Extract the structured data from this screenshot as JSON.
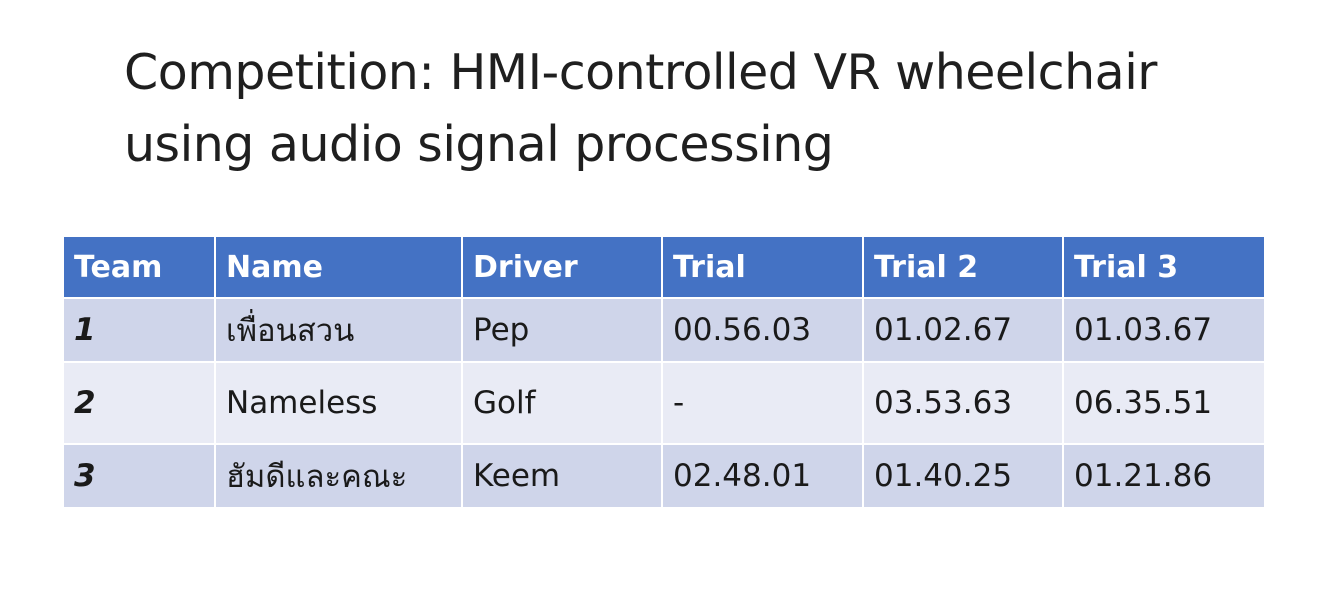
{
  "title": {
    "line1": "Competition: HMI-controlled VR wheelchair",
    "line2": "using audio signal processing"
  },
  "table": {
    "headers": [
      "Team",
      "Name",
      "Driver",
      "Trial",
      "Trial 2",
      "Trial 3"
    ],
    "rows": [
      {
        "team": "1",
        "name": "เพื่อนสวน",
        "driver": "Pep",
        "trial1": "00.56.03",
        "trial2": "01.02.67",
        "trial3": "01.03.67"
      },
      {
        "team": "2",
        "name": "Nameless",
        "driver": "Golf",
        "trial1": "-",
        "trial2": "03.53.63",
        "trial3": "06.35.51"
      },
      {
        "team": "3",
        "name": "ฮัมดีและคณะ",
        "driver": "Keem",
        "trial1": "02.48.01",
        "trial2": "01.40.25",
        "trial3": "01.21.86"
      }
    ]
  },
  "colors": {
    "header_bg": "#4472c4",
    "row_dark": "#cfd5ea",
    "row_light": "#e9ebf5",
    "highlight": "#e0101a"
  }
}
